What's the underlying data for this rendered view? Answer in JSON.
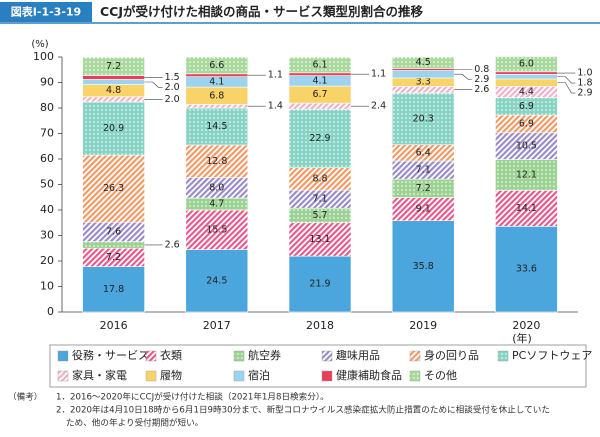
{
  "header": {
    "badge": "図表Ⅰ-1-3-19",
    "title": "CCJが受け付けた相談の商品・サービス類型別割合の推移"
  },
  "chart_data": {
    "type": "stacked-bar",
    "y_unit": "(%)",
    "x_unit": "(年)",
    "categories": [
      "2016",
      "2017",
      "2018",
      "2019",
      "2020"
    ],
    "ylim": [
      0,
      100
    ],
    "yticks": [
      0,
      10,
      20,
      30,
      40,
      50,
      60,
      70,
      80,
      90,
      100
    ],
    "series": [
      {
        "name": "役務・サービス",
        "color": "#4aa6dc",
        "pattern": "solid",
        "values": [
          17.8,
          24.5,
          21.9,
          35.8,
          33.6
        ],
        "value_labels": [
          "17.8",
          "24.5",
          "21.9",
          "35.8",
          "33.6"
        ]
      },
      {
        "name": "衣類",
        "color": "#e65a8c",
        "pattern": "hatch",
        "values": [
          7.2,
          15.5,
          13.1,
          9.1,
          14.1
        ],
        "value_labels": [
          "7.2",
          "15.5",
          "13.1",
          "9.1",
          "14.1"
        ]
      },
      {
        "name": "航空券",
        "color": "#7ac470",
        "pattern": "dots",
        "values": [
          2.6,
          4.7,
          5.7,
          7.2,
          12.1
        ],
        "value_labels": [
          "2.6",
          "4.7",
          "5.7",
          "7.2",
          "12.1"
        ]
      },
      {
        "name": "趣味用品",
        "color": "#9a8cc6",
        "pattern": "hatch",
        "values": [
          7.6,
          8.0,
          7.1,
          7.1,
          10.5
        ],
        "value_labels": [
          "7.6",
          "8.0",
          "7.1",
          "7.1",
          "10.5"
        ]
      },
      {
        "name": "身の回り品",
        "color": "#f29a66",
        "pattern": "hatch",
        "values": [
          26.3,
          12.8,
          8.8,
          6.4,
          6.9
        ],
        "value_labels": [
          "26.3",
          "12.8",
          "8.8",
          "6.4",
          "6.9"
        ]
      },
      {
        "name": "PCソフトウェア",
        "color": "#5ec4b0",
        "pattern": "dots",
        "values": [
          20.9,
          14.5,
          22.9,
          20.3,
          6.9
        ],
        "value_labels": [
          "20.9",
          "14.5",
          "22.9",
          "20.3",
          "6.9"
        ]
      },
      {
        "name": "家具・家電",
        "color": "#f0b0c8",
        "pattern": "hatch",
        "values": [
          2.0,
          1.4,
          2.4,
          2.6,
          4.4
        ],
        "value_labels": [
          "2.0",
          "1.4",
          "2.4",
          "2.6",
          "4.4"
        ]
      },
      {
        "name": "履物",
        "color": "#f8d468",
        "pattern": "solid",
        "values": [
          4.8,
          6.8,
          6.7,
          3.3,
          2.9
        ],
        "value_labels": [
          "4.8",
          "6.8",
          "6.7",
          "3.3",
          "2.9"
        ]
      },
      {
        "name": "宿泊",
        "color": "#9cd4f0",
        "pattern": "solid",
        "values": [
          2.0,
          4.1,
          4.1,
          2.9,
          1.8
        ],
        "value_labels": [
          "2.0",
          "4.1",
          "4.1",
          "2.9",
          "1.8"
        ]
      },
      {
        "name": "健康補助食品",
        "color": "#e6405a",
        "pattern": "solid",
        "values": [
          1.5,
          1.1,
          1.1,
          0.8,
          1.0
        ],
        "value_labels": [
          "1.5",
          "1.1",
          "1.1",
          "0.8",
          "1.0"
        ]
      },
      {
        "name": "その他",
        "color": "#8ccc7c",
        "pattern": "dots",
        "values": [
          7.2,
          6.6,
          6.1,
          4.5,
          6.0
        ],
        "value_labels": [
          "7.2",
          "6.6",
          "6.1",
          "4.5",
          "6.0"
        ]
      }
    ]
  },
  "notes": {
    "label": "（備考）",
    "items": [
      "1．2016～2020年にCCJが受け付けた相談（2021年1月8日検索分）。",
      "2．2020年は4月10日18時から6月1日9時30分まで、新型コロナウイルス感染症拡大防止措置のために相談受付を休止していた",
      "ため、他の年より受付期間が短い。"
    ]
  }
}
